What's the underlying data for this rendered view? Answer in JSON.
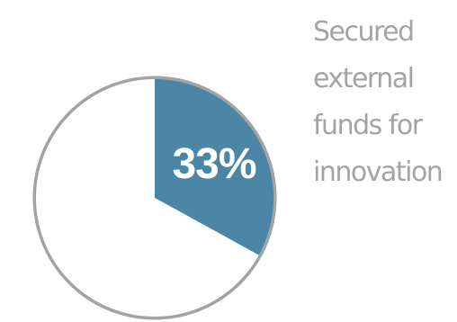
{
  "chart_data": {
    "type": "pie",
    "slices": [
      {
        "value": 33,
        "color": "#4b86a7"
      },
      {
        "value": 67,
        "color": "#ffffff"
      }
    ],
    "outline_color": "#a3a3a3",
    "label": "33%",
    "caption_lines": [
      "Secured",
      "external",
      "funds for",
      "innovation"
    ]
  }
}
